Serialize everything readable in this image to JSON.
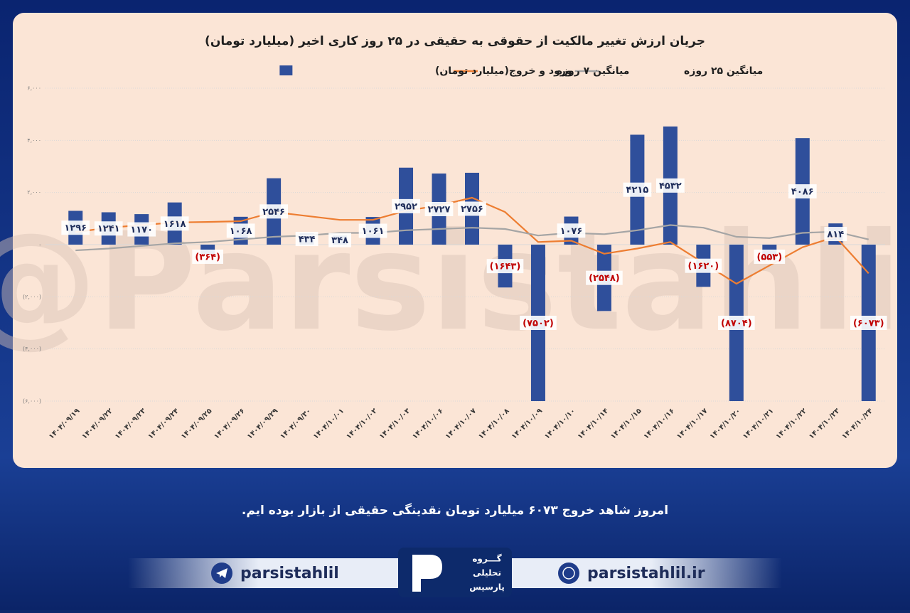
{
  "chart_data": {
    "type": "bar",
    "title": "جریان ارزش تغییر مالکیت از حقوقی به حقیقی در ۲۵ روز کاری اخیر (میلیارد تومان)",
    "watermark": "@Parsistahlil",
    "categories": [
      "۱۴۰۴/۰۹/۱۹",
      "۱۴۰۴/۰۹/۲۲",
      "۱۴۰۴/۰۹/۲۳",
      "۱۴۰۴/۰۹/۲۴",
      "۱۴۰۴/۰۹/۲۵",
      "۱۴۰۴/۰۹/۲۶",
      "۱۴۰۴/۰۹/۲۹",
      "۱۴۰۴/۰۹/۳۰",
      "۱۴۰۴/۱۰/۰۱",
      "۱۴۰۴/۱۰/۰۲",
      "۱۴۰۴/۱۰/۰۳",
      "۱۴۰۴/۱۰/۰۶",
      "۱۴۰۴/۱۰/۰۷",
      "۱۴۰۴/۱۰/۰۸",
      "۱۴۰۴/۱۰/۰۹",
      "۱۴۰۴/۱۰/۱۰",
      "۱۴۰۴/۱۰/۱۴",
      "۱۴۰۴/۱۰/۱۵",
      "۱۴۰۴/۱۰/۱۶",
      "۱۴۰۴/۱۰/۱۷",
      "۱۴۰۴/۱۰/۲۰",
      "۱۴۰۴/۱۰/۲۱",
      "۱۴۰۴/۱۰/۲۲",
      "۱۴۰۴/۱۰/۲۳",
      "۱۴۰۴/۱۰/۲۴"
    ],
    "series": [
      {
        "name": "ورود و خروج(میلیارد تومان)",
        "type": "bar",
        "color": "#2f4f9b",
        "values": [
          1296,
          1241,
          1170,
          1618,
          -364,
          1068,
          2546,
          434,
          348,
          1061,
          2952,
          2727,
          2756,
          -1643,
          -7502,
          1076,
          -2548,
          4215,
          4532,
          -1620,
          -8704,
          -553,
          4086,
          814,
          -6073
        ],
        "value_labels": [
          "۱۲۹۶",
          "۱۲۴۱",
          "۱۱۷۰",
          "۱۶۱۸",
          "(۳۶۴)",
          "۱۰۶۸",
          "۲۵۴۶",
          "۴۳۴",
          "۳۴۸",
          "۱۰۶۱",
          "۲۹۵۲",
          "۲۷۲۷",
          "۲۷۵۶",
          "(۱۶۴۳)",
          "(۷۵۰۲)",
          "۱۰۷۶",
          "(۲۵۴۸)",
          "۴۲۱۵",
          "۴۵۳۲",
          "(۱۶۲۰)",
          "(۸۷۰۴)",
          "(۵۵۳)",
          "۴۰۸۶",
          "۸۱۴",
          "(۶۰۷۳)"
        ]
      },
      {
        "name": "میانگین ۷ روزه",
        "type": "line",
        "color": "#ed7d31",
        "values": [
          480,
          650,
          750,
          850,
          870,
          900,
          1250,
          1100,
          950,
          950,
          1300,
          1500,
          1800,
          1250,
          100,
          150,
          -350,
          -150,
          100,
          -700,
          -1500,
          -800,
          -100,
          300,
          -1100
        ]
      },
      {
        "name": "میانگین ۲۵ روزه",
        "type": "line",
        "color": "#a5a5a5",
        "values": [
          -220,
          -150,
          -50,
          50,
          100,
          200,
          300,
          350,
          450,
          450,
          550,
          600,
          650,
          600,
          350,
          450,
          400,
          550,
          750,
          650,
          300,
          250,
          450,
          500,
          200
        ]
      }
    ],
    "ylim": [
      -6000,
      6000
    ],
    "yticks": [
      {
        "value": -6000,
        "label": "(۶,۰۰۰)"
      },
      {
        "value": -4000,
        "label": "(۴,۰۰۰)"
      },
      {
        "value": -2000,
        "label": "(۲,۰۰۰)"
      },
      {
        "value": 0,
        "label": "-"
      },
      {
        "value": 2000,
        "label": "۲,۰۰۰"
      },
      {
        "value": 4000,
        "label": "۴,۰۰۰"
      },
      {
        "value": 6000,
        "label": "۶,۰۰۰"
      }
    ],
    "grid": true,
    "legend": "top"
  },
  "caption": "امروز شاهد خروج ۶۰۷۳ میلیارد تومان نقدینگی حقیقی از بازار بوده ایم.",
  "footer": {
    "telegram": "parsistahlil",
    "website": "parsistahlil.ir",
    "logo": [
      "گـــروه",
      "تحلیلی",
      "پارسیس"
    ]
  }
}
